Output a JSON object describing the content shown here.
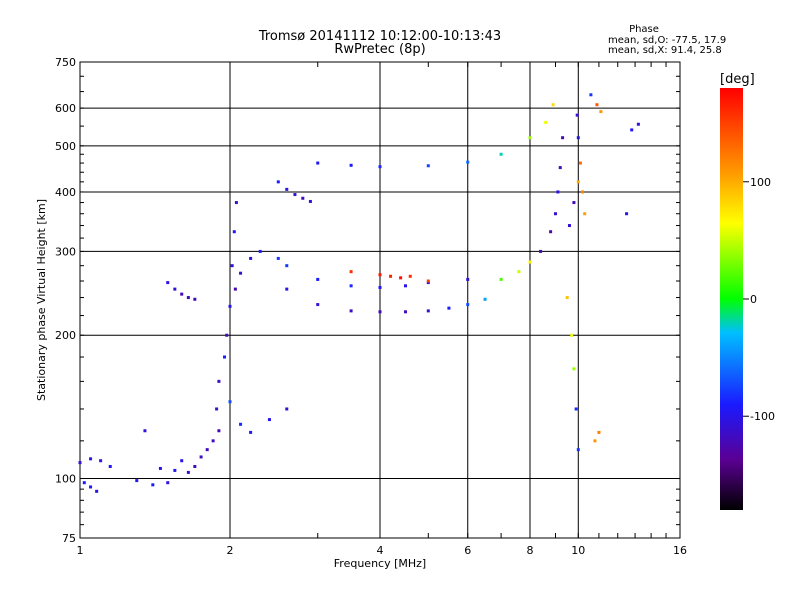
{
  "chart_data": {
    "type": "scatter",
    "title": "Tromsø 20141112 10:12:00-10:13:43",
    "subtitle": "RwPretec (8p)",
    "xlabel": "Frequency [MHz]",
    "ylabel": "Stationary phase Virtual Height [km]",
    "x_scale": "log",
    "y_scale": "log",
    "xlim": [
      1,
      16
    ],
    "ylim": [
      75,
      750
    ],
    "x_ticks": [
      1,
      2,
      4,
      6,
      8,
      10,
      16
    ],
    "x_tick_labels": [
      "1",
      "2",
      "4",
      "6",
      "8",
      "10",
      "16"
    ],
    "y_ticks": [
      75,
      100,
      200,
      300,
      400,
      500,
      600,
      750
    ],
    "y_tick_labels": [
      "75",
      "100",
      "200",
      "300",
      "400",
      "500",
      "600",
      "750"
    ],
    "grid": true,
    "phase_stats": {
      "heading": "Phase",
      "o_line": "mean, sd,O: -77.5, 17.9",
      "x_line": "mean, sd,X: 91.4, 25.8"
    },
    "colorbar": {
      "label": "[deg]",
      "range": [
        -180,
        180
      ],
      "ticks": [
        100,
        0,
        -100
      ],
      "tick_labels": [
        "100",
        "0",
        "-100"
      ]
    },
    "series": [
      {
        "values": [
          [
            1.0,
            108
          ],
          [
            1.05,
            110
          ],
          [
            1.1,
            109
          ],
          [
            1.15,
            106
          ],
          [
            1.02,
            98
          ],
          [
            1.05,
            96
          ],
          [
            1.08,
            94
          ],
          [
            1.3,
            99
          ],
          [
            1.35,
            126
          ],
          [
            1.4,
            97
          ],
          [
            1.45,
            105
          ],
          [
            1.5,
            98
          ],
          [
            1.55,
            104
          ],
          [
            1.6,
            109
          ],
          [
            1.65,
            103
          ],
          [
            1.7,
            106
          ],
          [
            1.75,
            111
          ],
          [
            1.8,
            115
          ],
          [
            1.85,
            120
          ],
          [
            1.9,
            126
          ],
          [
            1.5,
            258
          ],
          [
            1.55,
            250
          ],
          [
            1.6,
            244
          ],
          [
            1.65,
            240
          ],
          [
            1.7,
            238
          ],
          [
            1.88,
            140
          ],
          [
            1.9,
            160
          ],
          [
            1.95,
            180
          ],
          [
            1.97,
            200
          ],
          [
            2.0,
            230
          ],
          [
            2.02,
            280
          ],
          [
            2.04,
            330
          ],
          [
            2.06,
            380
          ],
          [
            2.05,
            250
          ],
          [
            2.1,
            270
          ],
          [
            2.2,
            290
          ],
          [
            2.3,
            300
          ],
          [
            2.5,
            290
          ],
          [
            2.0,
            145
          ],
          [
            2.1,
            130
          ],
          [
            2.2,
            125
          ],
          [
            2.4,
            133
          ],
          [
            2.6,
            140
          ],
          [
            2.5,
            420
          ],
          [
            2.6,
            405
          ],
          [
            2.7,
            395
          ],
          [
            2.8,
            388
          ],
          [
            2.9,
            382
          ],
          [
            2.6,
            250
          ],
          [
            3.0,
            232
          ],
          [
            3.5,
            225
          ],
          [
            4.0,
            224
          ],
          [
            4.5,
            224
          ],
          [
            5.0,
            225
          ],
          [
            5.5,
            228
          ],
          [
            6.0,
            232
          ],
          [
            6.5,
            238
          ],
          [
            2.6,
            280
          ],
          [
            3.0,
            262
          ],
          [
            3.5,
            254
          ],
          [
            4.0,
            252
          ],
          [
            4.5,
            254
          ],
          [
            5.0,
            258
          ],
          [
            6.0,
            262
          ],
          [
            3.0,
            460
          ],
          [
            3.5,
            455
          ],
          [
            4.0,
            452
          ],
          [
            5.0,
            454
          ],
          [
            6.0,
            462
          ],
          [
            7.0,
            480
          ],
          [
            8.0,
            520
          ],
          [
            8.6,
            560
          ],
          [
            8.9,
            610
          ],
          [
            7.0,
            262
          ],
          [
            7.6,
            272
          ],
          [
            8.0,
            285
          ],
          [
            8.4,
            300
          ],
          [
            8.8,
            330
          ],
          [
            9.0,
            360
          ],
          [
            9.1,
            400
          ],
          [
            9.2,
            450
          ],
          [
            9.3,
            520
          ],
          [
            9.6,
            340
          ],
          [
            9.8,
            380
          ],
          [
            10.0,
            420
          ],
          [
            10.2,
            400
          ],
          [
            10.3,
            360
          ],
          [
            10.1,
            460
          ],
          [
            10.0,
            520
          ],
          [
            9.95,
            580
          ],
          [
            9.5,
            240
          ],
          [
            9.7,
            200
          ],
          [
            9.8,
            170
          ],
          [
            9.9,
            140
          ],
          [
            10.0,
            115
          ],
          [
            12.5,
            360
          ],
          [
            12.8,
            540
          ],
          [
            13.2,
            555
          ],
          [
            10.8,
            120
          ],
          [
            11.0,
            125
          ],
          [
            10.9,
            610
          ],
          [
            10.6,
            640
          ],
          [
            11.1,
            590
          ],
          [
            3.5,
            272
          ],
          [
            4.0,
            268
          ],
          [
            4.2,
            266
          ],
          [
            4.4,
            264
          ],
          [
            4.6,
            266
          ],
          [
            5.0,
            260
          ]
        ],
        "phases": [
          -110,
          -100,
          -105,
          -95,
          -90,
          -95,
          -100,
          -95,
          -105,
          -90,
          -100,
          -105,
          -95,
          -100,
          -110,
          -120,
          -115,
          -120,
          -118,
          -122,
          -105,
          -110,
          -120,
          -115,
          -118,
          -110,
          -115,
          -90,
          -120,
          -100,
          -105,
          -95,
          -110,
          -125,
          -110,
          -100,
          -90,
          -80,
          -70,
          -85,
          -95,
          -100,
          -110,
          -90,
          -100,
          -110,
          -120,
          -105,
          -100,
          -105,
          -115,
          -125,
          -120,
          -110,
          -90,
          -70,
          -40,
          -80,
          -90,
          -85,
          -95,
          -100,
          -105,
          -110,
          -95,
          -90,
          -85,
          -75,
          -60,
          -20,
          40,
          60,
          80,
          20,
          50,
          70,
          -120,
          -130,
          -110,
          -100,
          -115,
          -125,
          -110,
          -120,
          100,
          120,
          105,
          130,
          -100,
          -110,
          90,
          60,
          40,
          -85,
          -80,
          -100,
          -95,
          -105,
          110,
          120,
          140,
          -80,
          110,
          160,
          170,
          165,
          175,
          160,
          150
        ]
      }
    ]
  }
}
